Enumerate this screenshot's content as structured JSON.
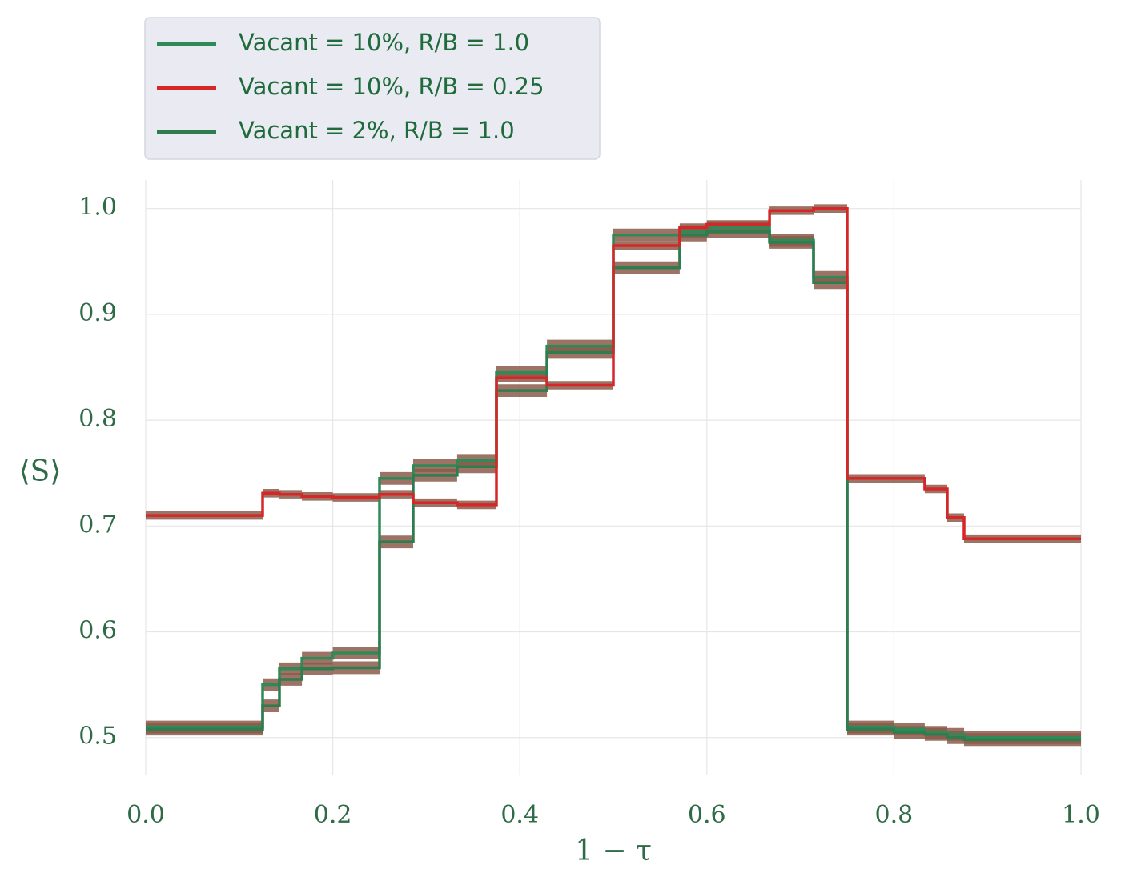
{
  "chart_data": {
    "type": "line",
    "xlabel": "1 − τ",
    "ylabel": "⟨S⟩",
    "xlim": [
      0.0,
      1.0
    ],
    "ylim": [
      0.465,
      1.027
    ],
    "xticks": [
      "0.0",
      "0.2",
      "0.4",
      "0.6",
      "0.8",
      "1.0"
    ],
    "yticks": [
      "0.5",
      "0.6",
      "0.7",
      "0.8",
      "0.9",
      "1.0"
    ],
    "grid": true,
    "legend_position": "top-left, above plot",
    "band_color": "#8b5a4a",
    "series": [
      {
        "name": "Vacant = 10%, R/B = 1.0",
        "color": "#2e8b57",
        "band": 0.006,
        "steps": [
          [
            0.0,
            0.51
          ],
          [
            0.125,
            0.55
          ],
          [
            0.143,
            0.565
          ],
          [
            0.167,
            0.575
          ],
          [
            0.2,
            0.58
          ],
          [
            0.25,
            0.745
          ],
          [
            0.286,
            0.757
          ],
          [
            0.333,
            0.762
          ],
          [
            0.375,
            0.845
          ],
          [
            0.429,
            0.87
          ],
          [
            0.5,
            0.975
          ],
          [
            0.571,
            0.978
          ],
          [
            0.6,
            0.982
          ],
          [
            0.667,
            0.97
          ],
          [
            0.714,
            0.935
          ],
          [
            0.75,
            0.51
          ],
          [
            0.8,
            0.508
          ],
          [
            0.833,
            0.505
          ],
          [
            0.857,
            0.503
          ],
          [
            0.875,
            0.5
          ],
          [
            1.0,
            0.5
          ]
        ]
      },
      {
        "name": "Vacant = 10%, R/B = 0.25",
        "color": "#d62728",
        "band": 0.004,
        "steps": [
          [
            0.0,
            0.71
          ],
          [
            0.125,
            0.731
          ],
          [
            0.143,
            0.73
          ],
          [
            0.167,
            0.728
          ],
          [
            0.2,
            0.727
          ],
          [
            0.25,
            0.73
          ],
          [
            0.286,
            0.722
          ],
          [
            0.333,
            0.72
          ],
          [
            0.375,
            0.84
          ],
          [
            0.429,
            0.833
          ],
          [
            0.5,
            0.965
          ],
          [
            0.571,
            0.982
          ],
          [
            0.6,
            0.985
          ],
          [
            0.667,
            0.998
          ],
          [
            0.714,
            1.0
          ],
          [
            0.75,
            0.745
          ],
          [
            0.8,
            0.745
          ],
          [
            0.833,
            0.735
          ],
          [
            0.857,
            0.708
          ],
          [
            0.875,
            0.688
          ],
          [
            1.0,
            0.688
          ]
        ]
      },
      {
        "name": "Vacant = 2%, R/B = 1.0",
        "color": "#2e7d4f",
        "band": 0.006,
        "steps": [
          [
            0.0,
            0.508
          ],
          [
            0.125,
            0.53
          ],
          [
            0.143,
            0.555
          ],
          [
            0.167,
            0.565
          ],
          [
            0.2,
            0.566
          ],
          [
            0.25,
            0.685
          ],
          [
            0.286,
            0.748
          ],
          [
            0.333,
            0.756
          ],
          [
            0.375,
            0.828
          ],
          [
            0.429,
            0.864
          ],
          [
            0.5,
            0.944
          ],
          [
            0.571,
            0.975
          ],
          [
            0.6,
            0.978
          ],
          [
            0.667,
            0.968
          ],
          [
            0.714,
            0.93
          ],
          [
            0.75,
            0.508
          ],
          [
            0.8,
            0.505
          ],
          [
            0.833,
            0.503
          ],
          [
            0.857,
            0.5
          ],
          [
            0.875,
            0.498
          ],
          [
            1.0,
            0.498
          ]
        ]
      }
    ]
  }
}
